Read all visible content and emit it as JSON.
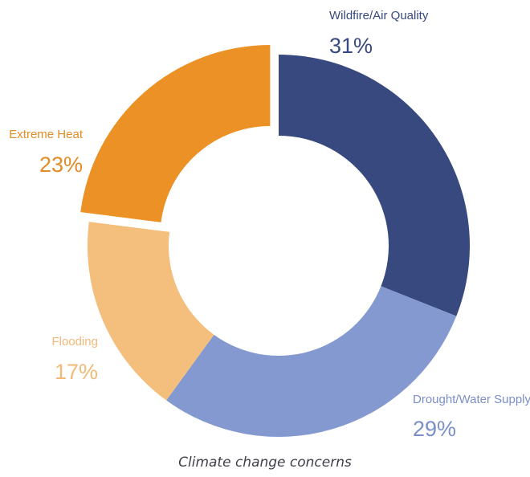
{
  "chart_data": {
    "type": "pie",
    "variant": "donut",
    "title": "Climate change concerns",
    "categories": [
      "Wildfire/Air Quality",
      "Drought/Water Supply",
      "Flooding",
      "Extreme Heat"
    ],
    "values": [
      31,
      29,
      17,
      23
    ],
    "labels": [
      "31%",
      "29%",
      "17%",
      "23%"
    ],
    "unit": "%",
    "exploded": "Extreme Heat",
    "colors": {
      "Wildfire/Air Quality": "#37497e",
      "Drought/Water Supply": "#8599d1",
      "Flooding": "#f4be7d",
      "Extreme Heat": "#ec9125"
    },
    "label_colors": {
      "Wildfire/Air Quality": "#37497e",
      "Drought/Water Supply": "#7b8fc8",
      "Flooding": "#f2b978",
      "Extreme Heat": "#e38b24"
    }
  }
}
